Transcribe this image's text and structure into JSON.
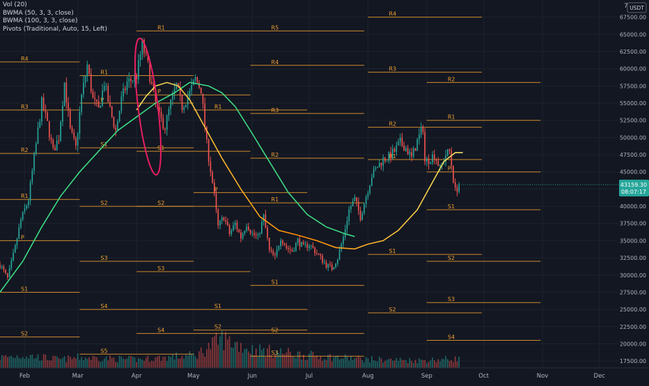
{
  "legend": {
    "vol": "Vol (20)",
    "bwma1": "BWMA (50, 3, 3, close)",
    "bwma2": "BWMA (100, 3, 3, close)",
    "pivots": "Pivots (Traditional, Auto, 15, Left)"
  },
  "currency_label": "USDT",
  "price_badge": {
    "price": "43159.30",
    "countdown": "08:07:17"
  },
  "colors": {
    "background": "#131722",
    "up": "#26a69a",
    "down": "#ef5350",
    "pivot": "#f0a030",
    "ma_slow": "#3ddc84",
    "ma_fast_start": "#f5e663",
    "ma_fast_mid": "#ff8c00",
    "highlight": "#e91e63",
    "axis_text": "#b2b5be",
    "grid": "#1e222d"
  },
  "chart_data": {
    "type": "candlestick",
    "y_axis": {
      "range": [
        16500,
        70000
      ],
      "ticks": [
        17500,
        20000,
        22500,
        25000,
        27500,
        30000,
        32500,
        35000,
        37500,
        40000,
        42500,
        45000,
        47500,
        50000,
        52500,
        55000,
        57500,
        60000,
        62500,
        65000,
        67500
      ],
      "tick_labels": [
        "17500.00",
        "20000.00",
        "22500.00",
        "25000.00",
        "27500.00",
        "30000.00",
        "32500.00",
        "35000.00",
        "37500.00",
        "40000.00",
        "42500.00",
        "45000.00",
        "47500.00",
        "50000.00",
        "52500.00",
        "55000.00",
        "57500.00",
        "60000.00",
        "62500.00",
        "65000.00",
        "67500.00"
      ],
      "top_label": "7"
    },
    "x_axis": {
      "months": [
        {
          "label": "Feb",
          "day": 31
        },
        {
          "label": "Mar",
          "day": 59
        },
        {
          "label": "Apr",
          "day": 90
        },
        {
          "label": "May",
          "day": 120
        },
        {
          "label": "Jun",
          "day": 151
        },
        {
          "label": "Jul",
          "day": 181
        },
        {
          "label": "Aug",
          "day": 212
        },
        {
          "label": "Sep",
          "day": 243
        },
        {
          "label": "Oct",
          "day": 273
        },
        {
          "label": "Nov",
          "day": 304
        },
        {
          "label": "Dec",
          "day": 334
        }
      ],
      "range_days": [
        18,
        344
      ]
    },
    "price_anchors": [
      [
        18,
        31500
      ],
      [
        22,
        29500
      ],
      [
        26,
        34000
      ],
      [
        29,
        38000
      ],
      [
        33,
        41000
      ],
      [
        36,
        47000
      ],
      [
        40,
        55000
      ],
      [
        43,
        52000
      ],
      [
        46,
        48000
      ],
      [
        49,
        50000
      ],
      [
        52,
        58000
      ],
      [
        55,
        51000
      ],
      [
        58,
        48500
      ],
      [
        61,
        56000
      ],
      [
        64,
        60500
      ],
      [
        67,
        55500
      ],
      [
        70,
        54000
      ],
      [
        73,
        58000
      ],
      [
        76,
        54000
      ],
      [
        79,
        51000
      ],
      [
        82,
        55500
      ],
      [
        85,
        58000
      ],
      [
        88,
        58500
      ],
      [
        90,
        59000
      ],
      [
        93,
        63500
      ],
      [
        96,
        60500
      ],
      [
        99,
        56000
      ],
      [
        102,
        53000
      ],
      [
        105,
        51500
      ],
      [
        108,
        55000
      ],
      [
        111,
        57500
      ],
      [
        114,
        54500
      ],
      [
        118,
        56500
      ],
      [
        121,
        58500
      ],
      [
        124,
        57000
      ],
      [
        127,
        49000
      ],
      [
        130,
        43500
      ],
      [
        133,
        37000
      ],
      [
        136,
        38500
      ],
      [
        139,
        36000
      ],
      [
        142,
        37500
      ],
      [
        145,
        35500
      ],
      [
        148,
        37500
      ],
      [
        151,
        36000
      ],
      [
        154,
        35500
      ],
      [
        157,
        38500
      ],
      [
        160,
        33500
      ],
      [
        163,
        32500
      ],
      [
        166,
        35500
      ],
      [
        169,
        34000
      ],
      [
        172,
        33500
      ],
      [
        175,
        35000
      ],
      [
        178,
        34000
      ],
      [
        181,
        34500
      ],
      [
        184,
        33500
      ],
      [
        187,
        32500
      ],
      [
        190,
        31500
      ],
      [
        193,
        31000
      ],
      [
        196,
        32500
      ],
      [
        199,
        35500
      ],
      [
        202,
        39500
      ],
      [
        205,
        41000
      ],
      [
        208,
        38500
      ],
      [
        211,
        41500
      ],
      [
        214,
        44500
      ],
      [
        217,
        45800
      ],
      [
        220,
        46800
      ],
      [
        223,
        47200
      ],
      [
        226,
        48000
      ],
      [
        229,
        49300
      ],
      [
        232,
        48500
      ],
      [
        235,
        47000
      ],
      [
        238,
        49500
      ],
      [
        241,
        51500
      ],
      [
        242,
        46500
      ],
      [
        244,
        46800
      ],
      [
        247,
        47500
      ],
      [
        250,
        45500
      ],
      [
        253,
        47500
      ],
      [
        255,
        48000
      ],
      [
        257,
        44000
      ],
      [
        258,
        42200
      ],
      [
        260,
        43159
      ]
    ],
    "volume_anchors": [
      [
        18,
        0.25
      ],
      [
        30,
        0.3
      ],
      [
        50,
        0.2
      ],
      [
        60,
        0.25
      ],
      [
        90,
        0.2
      ],
      [
        121,
        0.3
      ],
      [
        135,
        0.7
      ],
      [
        150,
        0.45
      ],
      [
        180,
        0.3
      ],
      [
        195,
        0.25
      ],
      [
        215,
        0.2
      ],
      [
        240,
        0.18
      ],
      [
        260,
        0.22
      ]
    ],
    "ma_slow_points": [
      [
        18,
        27500
      ],
      [
        30,
        32000
      ],
      [
        40,
        37000
      ],
      [
        50,
        41500
      ],
      [
        60,
        45000
      ],
      [
        70,
        48000
      ],
      [
        80,
        51000
      ],
      [
        90,
        53000
      ],
      [
        100,
        55000
      ],
      [
        110,
        56500
      ],
      [
        118,
        58000
      ],
      [
        128,
        57500
      ],
      [
        135,
        56500
      ],
      [
        142,
        54500
      ],
      [
        150,
        51000
      ],
      [
        160,
        46500
      ],
      [
        170,
        42000
      ],
      [
        180,
        38800
      ],
      [
        190,
        37000
      ],
      [
        200,
        36000
      ],
      [
        205,
        35600
      ]
    ],
    "ma_fast_points": [
      [
        90,
        54000
      ],
      [
        95,
        56000
      ],
      [
        100,
        57500
      ],
      [
        106,
        58000
      ],
      [
        112,
        57500
      ],
      [
        118,
        55500
      ],
      [
        125,
        52000
      ],
      [
        135,
        47000
      ],
      [
        145,
        42500
      ],
      [
        155,
        38500
      ],
      [
        165,
        36500
      ],
      [
        175,
        35800
      ],
      [
        185,
        35000
      ],
      [
        195,
        34000
      ],
      [
        205,
        33800
      ],
      [
        212,
        34500
      ],
      [
        220,
        35000
      ],
      [
        228,
        36500
      ],
      [
        238,
        39500
      ],
      [
        246,
        43500
      ],
      [
        252,
        46500
      ],
      [
        258,
        47800
      ],
      [
        262,
        47800
      ]
    ],
    "pivot_lines": [
      {
        "label": "R4",
        "price": 61000,
        "x0": 18,
        "x1": 60
      },
      {
        "label": "R3",
        "price": 54000,
        "x0": 18,
        "x1": 60
      },
      {
        "label": "R2",
        "price": 47700,
        "x0": 18,
        "x1": 60
      },
      {
        "label": "R1",
        "price": 41000,
        "x0": 18,
        "x1": 60
      },
      {
        "label": "P",
        "price": 35000,
        "x0": 18,
        "x1": 60
      },
      {
        "label": "S1",
        "price": 27500,
        "x0": 18,
        "x1": 60
      },
      {
        "label": "S2",
        "price": 21000,
        "x0": 18,
        "x1": 60
      },
      {
        "label": "R1",
        "price": 59000,
        "x0": 60,
        "x1": 120
      },
      {
        "label": "P",
        "price": 55000,
        "x0": 60,
        "x1": 120
      },
      {
        "label": "S1",
        "price": 48500,
        "x0": 60,
        "x1": 120
      },
      {
        "label": "S2",
        "price": 40000,
        "x0": 60,
        "x1": 120
      },
      {
        "label": "S3",
        "price": 32000,
        "x0": 60,
        "x1": 120
      },
      {
        "label": "S4",
        "price": 25000,
        "x0": 60,
        "x1": 120
      },
      {
        "label": "S5",
        "price": 18500,
        "x0": 60,
        "x1": 120
      },
      {
        "label": "R1",
        "price": 65500,
        "x0": 90,
        "x1": 150
      },
      {
        "label": "P",
        "price": 56200,
        "x0": 90,
        "x1": 150
      },
      {
        "label": "S1",
        "price": 48000,
        "x0": 90,
        "x1": 150
      },
      {
        "label": "S2",
        "price": 40000,
        "x0": 90,
        "x1": 150
      },
      {
        "label": "S3",
        "price": 30500,
        "x0": 90,
        "x1": 150
      },
      {
        "label": "S4",
        "price": 21500,
        "x0": 90,
        "x1": 150
      },
      {
        "label": "R1",
        "price": 54000,
        "x0": 120,
        "x1": 180
      },
      {
        "label": "P",
        "price": 42000,
        "x0": 120,
        "x1": 180
      },
      {
        "label": "S1",
        "price": 25000,
        "x0": 120,
        "x1": 180
      },
      {
        "label": "S2",
        "price": 22000,
        "x0": 120,
        "x1": 180
      },
      {
        "label": "R5",
        "price": 65500,
        "x0": 150,
        "x1": 210
      },
      {
        "label": "R4",
        "price": 60500,
        "x0": 150,
        "x1": 210
      },
      {
        "label": "R3",
        "price": 53500,
        "x0": 150,
        "x1": 210
      },
      {
        "label": "R2",
        "price": 47000,
        "x0": 150,
        "x1": 210
      },
      {
        "label": "R1",
        "price": 40500,
        "x0": 150,
        "x1": 210
      },
      {
        "label": "S1",
        "price": 28500,
        "x0": 150,
        "x1": 210
      },
      {
        "label": "S2",
        "price": 21500,
        "x0": 150,
        "x1": 210
      },
      {
        "label": "S3",
        "price": 18200,
        "x0": 150,
        "x1": 210
      },
      {
        "label": "R4",
        "price": 67500,
        "x0": 212,
        "x1": 272
      },
      {
        "label": "R3",
        "price": 59500,
        "x0": 212,
        "x1": 272
      },
      {
        "label": "R2",
        "price": 51500,
        "x0": 212,
        "x1": 272
      },
      {
        "label": "R1",
        "price": 46800,
        "x0": 212,
        "x1": 272
      },
      {
        "label": "S1",
        "price": 33000,
        "x0": 212,
        "x1": 272
      },
      {
        "label": "S2",
        "price": 24500,
        "x0": 212,
        "x1": 272
      },
      {
        "label": "R2",
        "price": 58000,
        "x0": 243,
        "x1": 303
      },
      {
        "label": "R1",
        "price": 52500,
        "x0": 243,
        "x1": 303
      },
      {
        "label": "P",
        "price": 45000,
        "x0": 243,
        "x1": 303
      },
      {
        "label": "S1",
        "price": 39500,
        "x0": 243,
        "x1": 303
      },
      {
        "label": "S2",
        "price": 32000,
        "x0": 243,
        "x1": 303
      },
      {
        "label": "S3",
        "price": 26000,
        "x0": 243,
        "x1": 303
      },
      {
        "label": "S4",
        "price": 20500,
        "x0": 243,
        "x1": 303
      }
    ],
    "highlight_ellipse": {
      "center_day": 96,
      "center_price": 54500,
      "rx_days": 5.2,
      "ry_price": 10000,
      "rotation_deg": -7
    },
    "grid": false
  }
}
